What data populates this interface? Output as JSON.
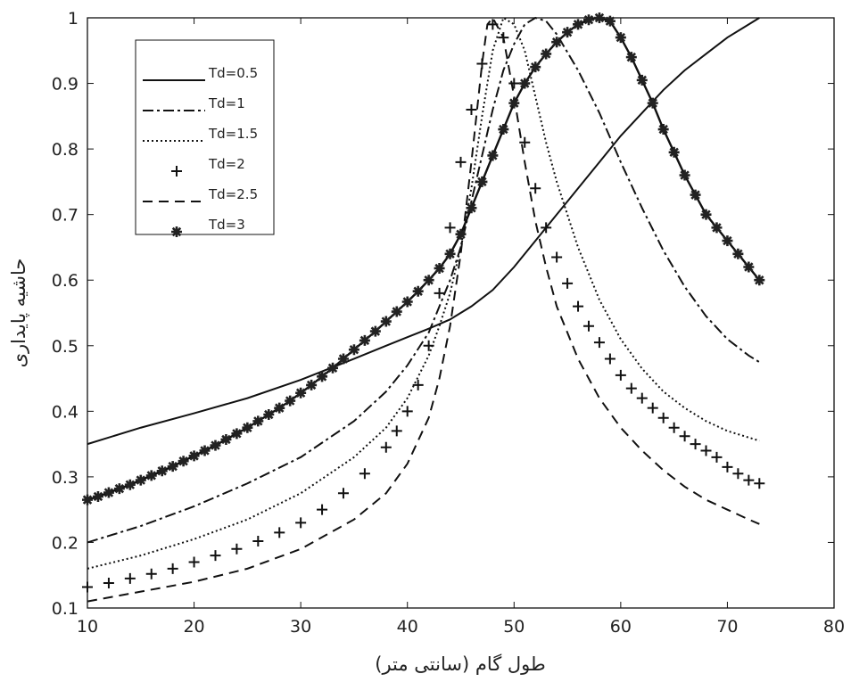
{
  "chart_data": {
    "type": "line",
    "xlabel": "طول گام (سانتی متر)",
    "ylabel": "حاشیه پایداری",
    "xlim": [
      10,
      80
    ],
    "ylim": [
      0.1,
      1
    ],
    "xticks": [
      "10",
      "20",
      "30",
      "40",
      "50",
      "60",
      "70",
      "80"
    ],
    "yticks": [
      "0.1",
      "0.2",
      "0.3",
      "0.4",
      "0.5",
      "0.6",
      "0.7",
      "0.8",
      "0.9",
      "1"
    ],
    "grid": false,
    "legend_position": "top-left",
    "series": [
      {
        "name": "Td=0.5",
        "style": "solid",
        "color": "#111111",
        "x": [
          10,
          15,
          20,
          25,
          30,
          35,
          38,
          40,
          42,
          44,
          46,
          48,
          50,
          52,
          54,
          56,
          58,
          60,
          62,
          64,
          66,
          68,
          70,
          72,
          73
        ],
        "y": [
          0.35,
          0.375,
          0.397,
          0.42,
          0.448,
          0.48,
          0.5,
          0.513,
          0.526,
          0.54,
          0.56,
          0.585,
          0.62,
          0.66,
          0.7,
          0.74,
          0.78,
          0.82,
          0.855,
          0.89,
          0.92,
          0.945,
          0.97,
          0.99,
          1.0
        ]
      },
      {
        "name": "Td=1",
        "style": "dashdot",
        "color": "#111111",
        "x": [
          10,
          15,
          20,
          25,
          30,
          35,
          38,
          40,
          42,
          44,
          45,
          46,
          47,
          48,
          49,
          50,
          51,
          52,
          53,
          54,
          56,
          58,
          60,
          62,
          64,
          66,
          68,
          70,
          72,
          73
        ],
        "y": [
          0.2,
          0.225,
          0.255,
          0.29,
          0.33,
          0.385,
          0.43,
          0.47,
          0.52,
          0.6,
          0.65,
          0.72,
          0.79,
          0.86,
          0.92,
          0.96,
          0.99,
          1.0,
          0.995,
          0.975,
          0.92,
          0.855,
          0.78,
          0.71,
          0.645,
          0.59,
          0.545,
          0.51,
          0.485,
          0.475
        ]
      },
      {
        "name": "Td=1.5",
        "style": "dotted",
        "color": "#111111",
        "x": [
          10,
          15,
          20,
          25,
          30,
          35,
          38,
          40,
          42,
          43,
          44,
          45,
          46,
          47,
          48,
          49,
          50,
          51,
          52,
          53,
          54,
          55,
          56,
          58,
          60,
          62,
          64,
          66,
          68,
          70,
          72,
          73
        ],
        "y": [
          0.16,
          0.18,
          0.205,
          0.235,
          0.275,
          0.33,
          0.375,
          0.42,
          0.485,
          0.53,
          0.58,
          0.65,
          0.74,
          0.85,
          0.95,
          1.0,
          0.99,
          0.95,
          0.88,
          0.81,
          0.75,
          0.7,
          0.65,
          0.57,
          0.51,
          0.465,
          0.43,
          0.405,
          0.385,
          0.37,
          0.36,
          0.355
        ]
      },
      {
        "name": "Td=2",
        "style": "plus",
        "color": "#111111",
        "x": [
          10,
          12,
          14,
          16,
          18,
          20,
          22,
          24,
          26,
          28,
          30,
          32,
          34,
          36,
          38,
          39,
          40,
          41,
          42,
          43,
          44,
          45,
          46,
          47,
          48,
          49,
          50,
          51,
          52,
          53,
          54,
          55,
          56,
          57,
          58,
          59,
          60,
          61,
          62,
          63,
          64,
          65,
          66,
          67,
          68,
          69,
          70,
          71,
          72,
          73
        ],
        "y": [
          0.132,
          0.138,
          0.145,
          0.152,
          0.16,
          0.17,
          0.18,
          0.19,
          0.202,
          0.215,
          0.23,
          0.25,
          0.275,
          0.305,
          0.345,
          0.37,
          0.4,
          0.44,
          0.5,
          0.58,
          0.68,
          0.78,
          0.86,
          0.93,
          0.99,
          0.97,
          0.9,
          0.81,
          0.74,
          0.68,
          0.635,
          0.595,
          0.56,
          0.53,
          0.505,
          0.48,
          0.455,
          0.435,
          0.42,
          0.405,
          0.39,
          0.375,
          0.362,
          0.35,
          0.34,
          0.33,
          0.315,
          0.305,
          0.295,
          0.29
        ]
      },
      {
        "name": "Td=2.5",
        "style": "dashed",
        "color": "#111111",
        "x": [
          10,
          15,
          20,
          25,
          30,
          35,
          38,
          40,
          42,
          43,
          44,
          45,
          46,
          47,
          47.5,
          48,
          49,
          50,
          51,
          52,
          53,
          54,
          56,
          58,
          60,
          62,
          64,
          66,
          68,
          70,
          72,
          73
        ],
        "y": [
          0.11,
          0.125,
          0.14,
          0.16,
          0.19,
          0.235,
          0.275,
          0.32,
          0.39,
          0.45,
          0.53,
          0.64,
          0.78,
          0.93,
          0.99,
          1.0,
          0.97,
          0.88,
          0.78,
          0.69,
          0.62,
          0.56,
          0.48,
          0.42,
          0.375,
          0.34,
          0.31,
          0.285,
          0.265,
          0.25,
          0.235,
          0.228
        ]
      },
      {
        "name": "Td=3",
        "style": "asterisk",
        "color": "#111111",
        "x": [
          10,
          11,
          12,
          13,
          14,
          15,
          16,
          17,
          18,
          19,
          20,
          21,
          22,
          23,
          24,
          25,
          26,
          27,
          28,
          29,
          30,
          31,
          32,
          33,
          34,
          35,
          36,
          37,
          38,
          39,
          40,
          41,
          42,
          43,
          44,
          45,
          46,
          47,
          48,
          49,
          50,
          51,
          52,
          53,
          54,
          55,
          56,
          57,
          58,
          59,
          60,
          61,
          62,
          63,
          64,
          65,
          66,
          67,
          68,
          69,
          70,
          71,
          72,
          73
        ],
        "y": [
          0.265,
          0.27,
          0.276,
          0.282,
          0.288,
          0.295,
          0.302,
          0.309,
          0.316,
          0.324,
          0.332,
          0.34,
          0.348,
          0.357,
          0.366,
          0.375,
          0.385,
          0.395,
          0.405,
          0.416,
          0.428,
          0.44,
          0.453,
          0.466,
          0.48,
          0.494,
          0.508,
          0.522,
          0.537,
          0.552,
          0.567,
          0.583,
          0.6,
          0.618,
          0.64,
          0.67,
          0.71,
          0.75,
          0.79,
          0.83,
          0.87,
          0.9,
          0.925,
          0.945,
          0.963,
          0.978,
          0.99,
          0.997,
          1.0,
          0.995,
          0.97,
          0.94,
          0.905,
          0.87,
          0.83,
          0.795,
          0.76,
          0.73,
          0.7,
          0.68,
          0.66,
          0.64,
          0.62,
          0.6
        ]
      }
    ]
  }
}
